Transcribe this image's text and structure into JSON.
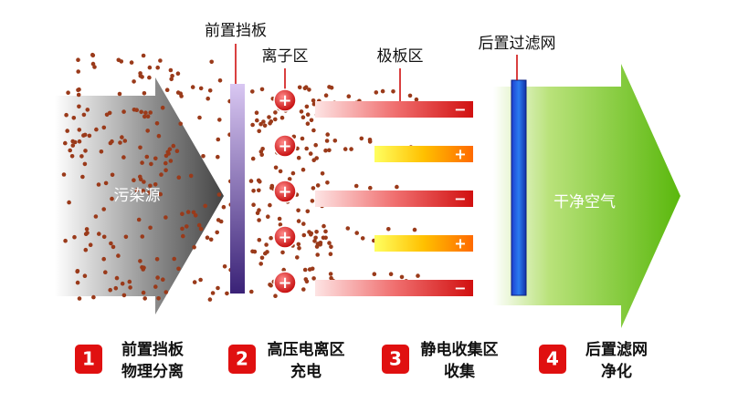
{
  "labels": {
    "front_baffle": "前置挡板",
    "ion_zone": "离子区",
    "plate_zone": "极板区",
    "rear_filter": "后置过滤网",
    "source": "污染源",
    "clean_air": "干净空气"
  },
  "ion_signs": [
    "+",
    "+",
    "+",
    "+",
    "+"
  ],
  "plate_signs": [
    "−",
    "+",
    "−",
    "+",
    "−"
  ],
  "steps": [
    {
      "number": "1",
      "line1": "前置挡板",
      "line2": "物理分离"
    },
    {
      "number": "2",
      "line1": "高压电离区",
      "line2": "充电"
    },
    {
      "number": "3",
      "line1": "静电收集区",
      "line2": "收集"
    },
    {
      "number": "4",
      "line1": "后置滤网",
      "line2": "净化"
    }
  ]
}
